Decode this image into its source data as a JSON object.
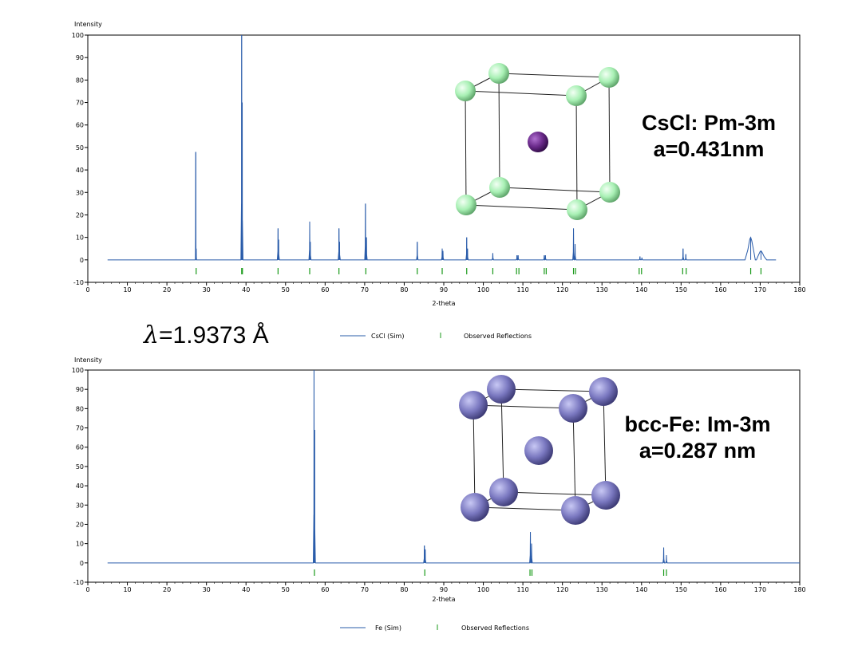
{
  "wavelength": {
    "symbol": "λ",
    "value": "=1.9373 Å"
  },
  "colors": {
    "line": "#2a5caa",
    "reflection": "#1a9a1a",
    "axis": "#000000",
    "cl_atom": "#a8f0b4",
    "cs_atom": "#6a2a8a",
    "fe_atom": "#7a78c0"
  },
  "chart_data": [
    {
      "type": "line",
      "name_panel": "CsCl",
      "ylabel": "Intensity",
      "xlabel": "2-theta",
      "xlim": [
        0,
        180
      ],
      "ylim": [
        -10,
        100
      ],
      "xticks": [
        0,
        10,
        20,
        30,
        40,
        50,
        60,
        70,
        80,
        90,
        100,
        110,
        120,
        130,
        140,
        150,
        160,
        170,
        180
      ],
      "yticks": [
        -10,
        0,
        10,
        20,
        30,
        40,
        50,
        60,
        70,
        80,
        90,
        100
      ],
      "x_start": 5,
      "x_end": 174,
      "peaks": [
        {
          "x": 27.3,
          "y": 48
        },
        {
          "x": 27.4,
          "y": 5
        },
        {
          "x": 38.9,
          "y": 100
        },
        {
          "x": 39.05,
          "y": 70
        },
        {
          "x": 48.1,
          "y": 14
        },
        {
          "x": 48.25,
          "y": 9
        },
        {
          "x": 56.1,
          "y": 17
        },
        {
          "x": 56.25,
          "y": 8
        },
        {
          "x": 63.5,
          "y": 14
        },
        {
          "x": 63.65,
          "y": 8
        },
        {
          "x": 70.2,
          "y": 25
        },
        {
          "x": 70.45,
          "y": 10
        },
        {
          "x": 83.3,
          "y": 8
        },
        {
          "x": 89.6,
          "y": 5
        },
        {
          "x": 89.8,
          "y": 4
        },
        {
          "x": 95.8,
          "y": 10
        },
        {
          "x": 96.0,
          "y": 5
        },
        {
          "x": 102.4,
          "y": 3
        },
        {
          "x": 108.5,
          "y": 2
        },
        {
          "x": 108.8,
          "y": 2
        },
        {
          "x": 115.4,
          "y": 2
        },
        {
          "x": 115.7,
          "y": 2
        },
        {
          "x": 122.8,
          "y": 14
        },
        {
          "x": 123.2,
          "y": 7
        },
        {
          "x": 139.6,
          "y": 1.5
        },
        {
          "x": 140.1,
          "y": 1
        },
        {
          "x": 150.5,
          "y": 5
        },
        {
          "x": 151.2,
          "y": 2.5
        },
        {
          "x": 167.6,
          "y": 10,
          "wide": true
        },
        {
          "x": 170.2,
          "y": 4,
          "wide": true
        }
      ],
      "reflections": [
        27.4,
        38.9,
        39.1,
        48.1,
        56.1,
        63.5,
        70.3,
        83.3,
        89.6,
        95.8,
        102.4,
        108.4,
        109.0,
        115.4,
        115.9,
        122.8,
        123.3,
        139.4,
        140.0,
        150.4,
        151.3,
        167.6,
        170.2
      ],
      "legend": {
        "series": "CsCl (Sim)",
        "reflections": "Observed Reflections"
      },
      "annotation": [
        "CsCl: Pm-3m",
        "a=0.431nm"
      ]
    },
    {
      "type": "line",
      "name_panel": "bcc-Fe",
      "ylabel": "Intensity",
      "xlabel": "2-theta",
      "xlim": [
        0,
        180
      ],
      "ylim": [
        -10,
        100
      ],
      "xticks": [
        0,
        10,
        20,
        30,
        40,
        50,
        60,
        70,
        80,
        90,
        100,
        110,
        120,
        130,
        140,
        150,
        160,
        170,
        180
      ],
      "yticks": [
        -10,
        0,
        10,
        20,
        30,
        40,
        50,
        60,
        70,
        80,
        90,
        100
      ],
      "x_start": 5,
      "x_end": 180,
      "peaks": [
        {
          "x": 57.2,
          "y": 100
        },
        {
          "x": 57.35,
          "y": 69
        },
        {
          "x": 85.1,
          "y": 9
        },
        {
          "x": 85.3,
          "y": 7
        },
        {
          "x": 111.9,
          "y": 16
        },
        {
          "x": 112.2,
          "y": 10
        },
        {
          "x": 145.6,
          "y": 8
        },
        {
          "x": 146.3,
          "y": 4
        }
      ],
      "reflections": [
        57.3,
        85.2,
        111.8,
        112.3,
        145.6,
        146.3
      ],
      "legend": {
        "series": "Fe (Sim)",
        "reflections": "Observed Reflections"
      },
      "annotation": [
        "bcc-Fe: Im-3m",
        "a=0.287 nm"
      ]
    }
  ]
}
